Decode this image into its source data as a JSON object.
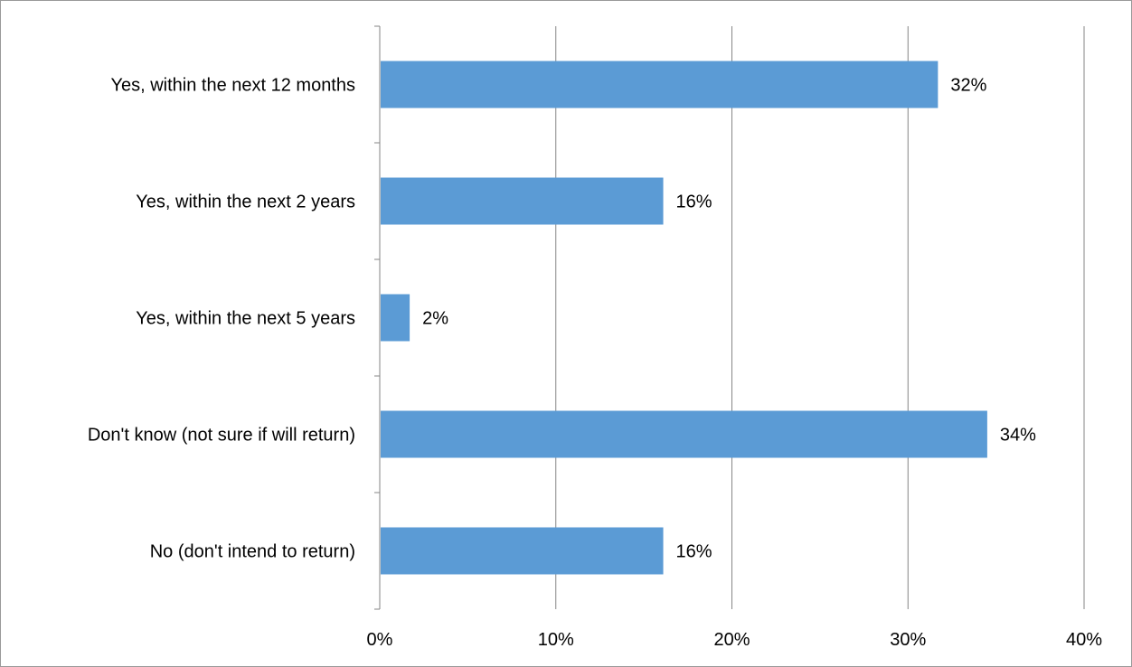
{
  "chart_data": {
    "type": "bar",
    "orientation": "horizontal",
    "title": "",
    "xlabel": "",
    "ylabel": "",
    "categories": [
      "Yes, within the next 12 months",
      "Yes, within the next 2 years",
      "Yes, within the next 5 years",
      "Don't know (not sure if will return)",
      "No (don't intend to return)"
    ],
    "values": [
      0.317,
      0.161,
      0.017,
      0.345,
      0.161
    ],
    "data_labels": [
      "32%",
      "16%",
      "2%",
      "34%",
      "16%"
    ],
    "xlim": [
      0,
      0.4
    ],
    "x_ticks": [
      0,
      0.1,
      0.2,
      0.3,
      0.4
    ],
    "x_tick_labels": [
      "0%",
      "10%",
      "20%",
      "30%",
      "40%"
    ],
    "grid": "vertical",
    "legend": "none",
    "bar_color": "#5B9BD5",
    "grid_color": "#868686"
  }
}
